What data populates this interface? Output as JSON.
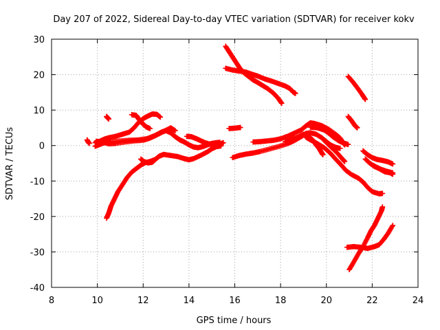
{
  "chart_data": {
    "type": "scatter",
    "title": "Day 207 of 2022, Sidereal Day-to-day VTEC variation (SDTVAR) for receiver kokv",
    "xlabel": "GPS time / hours",
    "ylabel": "SDTVAR / TECUs",
    "xlim": [
      8,
      24
    ],
    "ylim": [
      -40,
      30
    ],
    "x_ticks": [
      8,
      10,
      12,
      14,
      16,
      18,
      20,
      22,
      24
    ],
    "y_ticks": [
      -40,
      -30,
      -20,
      -10,
      0,
      10,
      20,
      30
    ],
    "grid": true,
    "marker": "plus",
    "color": "#ff0000",
    "tracks": [
      [
        [
          9.55,
          1.6
        ],
        [
          9.6,
          1.0
        ],
        [
          9.65,
          0.6
        ]
      ],
      [
        [
          9.9,
          0.8
        ],
        [
          10.1,
          1.2
        ],
        [
          10.3,
          1.8
        ],
        [
          10.5,
          2.2
        ],
        [
          10.8,
          2.6
        ],
        [
          11.1,
          3.2
        ],
        [
          11.4,
          3.8
        ],
        [
          11.6,
          5.0
        ],
        [
          11.8,
          6.5
        ],
        [
          12.0,
          7.6
        ],
        [
          12.2,
          8.3
        ],
        [
          12.4,
          8.9
        ],
        [
          12.6,
          8.8
        ],
        [
          12.75,
          8.0
        ]
      ],
      [
        [
          9.9,
          -0.2
        ],
        [
          10.1,
          0.3
        ],
        [
          10.3,
          0.8
        ],
        [
          10.6,
          1.0
        ],
        [
          11.0,
          1.3
        ],
        [
          11.4,
          1.5
        ],
        [
          11.8,
          1.6
        ],
        [
          12.2,
          2.0
        ],
        [
          12.5,
          2.8
        ],
        [
          12.8,
          3.8
        ],
        [
          13.0,
          4.2
        ],
        [
          13.2,
          3.6
        ],
        [
          13.4,
          2.5
        ],
        [
          13.6,
          1.6
        ],
        [
          13.8,
          1.0
        ],
        [
          14.0,
          0.2
        ],
        [
          14.2,
          -0.4
        ],
        [
          14.4,
          -0.6
        ],
        [
          14.6,
          -0.3
        ],
        [
          14.8,
          0.2
        ],
        [
          15.0,
          0.6
        ],
        [
          15.2,
          0.8
        ],
        [
          15.35,
          0.9
        ]
      ],
      [
        [
          9.95,
          1.2
        ],
        [
          10.2,
          1.0
        ],
        [
          10.5,
          0.5
        ],
        [
          10.8,
          0.6
        ],
        [
          11.2,
          1.0
        ],
        [
          11.6,
          1.3
        ],
        [
          12.0,
          1.5
        ],
        [
          12.3,
          2.1
        ],
        [
          12.6,
          3.0
        ],
        [
          12.9,
          4.0
        ],
        [
          13.2,
          5.0
        ],
        [
          13.4,
          4.2
        ]
      ],
      [
        [
          10.4,
          8.2
        ],
        [
          10.45,
          7.8
        ],
        [
          10.5,
          7.5
        ]
      ],
      [
        [
          11.5,
          8.7
        ],
        [
          11.7,
          8.5
        ],
        [
          11.8,
          7.5
        ],
        [
          11.9,
          6.8
        ],
        [
          12.0,
          6.0
        ],
        [
          12.15,
          5.2
        ],
        [
          12.3,
          4.8
        ]
      ],
      [
        [
          10.4,
          -20.5
        ],
        [
          10.5,
          -19.0
        ],
        [
          10.6,
          -17.0
        ],
        [
          10.75,
          -15.0
        ],
        [
          10.9,
          -13.0
        ],
        [
          11.1,
          -11.0
        ],
        [
          11.3,
          -9.0
        ],
        [
          11.5,
          -7.5
        ],
        [
          11.7,
          -6.5
        ],
        [
          11.9,
          -5.5
        ],
        [
          12.1,
          -4.8
        ],
        [
          12.3,
          -4.5
        ],
        [
          12.5,
          -4.0
        ]
      ],
      [
        [
          11.9,
          -3.8
        ],
        [
          12.0,
          -4.4
        ],
        [
          12.2,
          -4.9
        ],
        [
          12.4,
          -4.7
        ],
        [
          12.55,
          -3.8
        ],
        [
          12.7,
          -3.0
        ],
        [
          12.9,
          -2.5
        ],
        [
          13.2,
          -2.8
        ],
        [
          13.5,
          -3.1
        ],
        [
          13.8,
          -3.7
        ],
        [
          14.0,
          -4.0
        ],
        [
          14.2,
          -3.7
        ],
        [
          14.5,
          -2.8
        ],
        [
          14.8,
          -1.8
        ],
        [
          15.0,
          -0.9
        ],
        [
          15.2,
          -0.3
        ],
        [
          15.4,
          -0.1
        ]
      ],
      [
        [
          13.9,
          2.6
        ],
        [
          14.1,
          2.5
        ],
        [
          14.3,
          2.0
        ],
        [
          14.5,
          1.4
        ],
        [
          14.7,
          0.8
        ],
        [
          14.9,
          0.4
        ],
        [
          15.1,
          0.1
        ],
        [
          15.3,
          0.3
        ],
        [
          15.5,
          0.8
        ]
      ],
      [
        [
          15.6,
          28.0
        ],
        [
          15.75,
          26.5
        ],
        [
          15.9,
          25.0
        ],
        [
          16.05,
          23.5
        ],
        [
          16.2,
          22.0
        ],
        [
          16.4,
          20.5
        ],
        [
          16.6,
          19.5
        ],
        [
          16.8,
          18.5
        ],
        [
          17.0,
          17.8
        ],
        [
          17.2,
          17.0
        ],
        [
          17.45,
          16.0
        ],
        [
          17.7,
          14.7
        ],
        [
          17.9,
          13.3
        ],
        [
          18.05,
          11.9
        ]
      ],
      [
        [
          15.6,
          21.8
        ],
        [
          15.9,
          21.3
        ],
        [
          16.2,
          21.0
        ],
        [
          16.5,
          20.7
        ],
        [
          16.8,
          20.0
        ],
        [
          17.0,
          19.6
        ],
        [
          17.3,
          18.8
        ],
        [
          17.6,
          18.2
        ],
        [
          17.9,
          17.5
        ],
        [
          18.2,
          16.8
        ],
        [
          18.4,
          16.1
        ],
        [
          18.55,
          15.1
        ],
        [
          18.65,
          14.7
        ]
      ],
      [
        [
          15.75,
          4.8
        ],
        [
          16.0,
          4.9
        ],
        [
          16.25,
          5.1
        ]
      ],
      [
        [
          15.9,
          -3.4
        ],
        [
          16.2,
          -2.8
        ],
        [
          16.5,
          -2.4
        ],
        [
          16.8,
          -2.1
        ],
        [
          17.1,
          -1.7
        ],
        [
          17.5,
          -1.0
        ],
        [
          17.9,
          -0.3
        ],
        [
          18.3,
          0.5
        ],
        [
          18.6,
          1.4
        ],
        [
          18.9,
          2.5
        ],
        [
          19.1,
          3.4
        ],
        [
          19.3,
          3.6
        ],
        [
          19.55,
          3.2
        ],
        [
          19.8,
          2.2
        ],
        [
          20.0,
          1.1
        ],
        [
          20.2,
          0.1
        ],
        [
          20.4,
          -0.5
        ],
        [
          20.6,
          -0.8
        ]
      ],
      [
        [
          16.8,
          1.0
        ],
        [
          17.1,
          1.1
        ],
        [
          17.4,
          1.3
        ],
        [
          17.7,
          1.5
        ],
        [
          18.0,
          1.9
        ],
        [
          18.3,
          2.6
        ],
        [
          18.6,
          3.5
        ],
        [
          18.9,
          4.4
        ],
        [
          19.1,
          5.5
        ],
        [
          19.3,
          6.4
        ],
        [
          19.5,
          6.2
        ],
        [
          19.8,
          5.6
        ],
        [
          20.1,
          4.6
        ],
        [
          20.4,
          3.2
        ],
        [
          20.6,
          2.1
        ],
        [
          20.75,
          0.6
        ],
        [
          20.8,
          0.2
        ]
      ],
      [
        [
          18.2,
          1.1
        ],
        [
          18.5,
          1.8
        ],
        [
          18.8,
          2.5
        ],
        [
          19.0,
          3.2
        ],
        [
          19.2,
          2.7
        ],
        [
          19.4,
          1.6
        ],
        [
          19.55,
          0.2
        ],
        [
          19.7,
          -1.0
        ],
        [
          19.8,
          -2.1
        ],
        [
          19.85,
          -2.6
        ]
      ],
      [
        [
          19.3,
          5.2
        ],
        [
          19.6,
          5.0
        ],
        [
          19.9,
          4.4
        ],
        [
          20.1,
          3.5
        ],
        [
          20.3,
          2.4
        ],
        [
          20.55,
          1.3
        ],
        [
          20.8,
          0.6
        ],
        [
          20.95,
          0.3
        ]
      ],
      [
        [
          19.1,
          2.4
        ],
        [
          19.3,
          1.6
        ],
        [
          19.6,
          0.6
        ],
        [
          19.9,
          -0.6
        ],
        [
          20.15,
          -2.0
        ],
        [
          20.4,
          -3.8
        ],
        [
          20.65,
          -5.5
        ],
        [
          20.85,
          -7.0
        ],
        [
          21.1,
          -8.2
        ],
        [
          21.4,
          -9.2
        ],
        [
          21.6,
          -10.3
        ],
        [
          21.8,
          -11.8
        ],
        [
          22.0,
          -13.0
        ],
        [
          22.3,
          -13.6
        ],
        [
          22.45,
          -13.5
        ]
      ],
      [
        [
          19.9,
          1.5
        ],
        [
          20.1,
          0.2
        ],
        [
          20.3,
          -1.0
        ],
        [
          20.5,
          -2.3
        ],
        [
          20.7,
          -3.8
        ],
        [
          20.8,
          -4.5
        ]
      ],
      [
        [
          20.95,
          19.5
        ],
        [
          21.15,
          18.0
        ],
        [
          21.35,
          16.3
        ],
        [
          21.55,
          14.5
        ],
        [
          21.7,
          13.0
        ]
      ],
      [
        [
          20.95,
          8.2
        ],
        [
          21.1,
          7.0
        ],
        [
          21.25,
          5.6
        ],
        [
          21.35,
          5.0
        ]
      ],
      [
        [
          21.6,
          -1.5
        ],
        [
          21.8,
          -2.6
        ],
        [
          22.0,
          -3.4
        ],
        [
          22.2,
          -3.9
        ],
        [
          22.45,
          -4.2
        ],
        [
          22.7,
          -4.6
        ],
        [
          22.9,
          -5.2
        ]
      ],
      [
        [
          21.7,
          -3.8
        ],
        [
          21.9,
          -5.0
        ],
        [
          22.1,
          -5.9
        ],
        [
          22.35,
          -6.6
        ],
        [
          22.6,
          -7.2
        ],
        [
          22.9,
          -7.7
        ]
      ],
      [
        [
          22.05,
          -5.6
        ],
        [
          22.3,
          -6.5
        ],
        [
          22.55,
          -7.4
        ],
        [
          22.8,
          -7.7
        ],
        [
          22.9,
          -8.1
        ]
      ],
      [
        [
          21.0,
          -35.0
        ],
        [
          21.2,
          -32.8
        ],
        [
          21.4,
          -30.5
        ],
        [
          21.6,
          -28.5
        ],
        [
          21.8,
          -26.0
        ],
        [
          21.95,
          -24.0
        ],
        [
          22.1,
          -22.5
        ],
        [
          22.25,
          -20.5
        ],
        [
          22.4,
          -18.5
        ],
        [
          22.45,
          -17.3
        ]
      ],
      [
        [
          20.9,
          -28.7
        ],
        [
          21.2,
          -28.5
        ],
        [
          21.5,
          -28.7
        ],
        [
          21.8,
          -29.0
        ],
        [
          22.1,
          -28.5
        ],
        [
          22.3,
          -28.0
        ],
        [
          22.5,
          -26.5
        ],
        [
          22.7,
          -24.7
        ],
        [
          22.9,
          -22.5
        ]
      ]
    ]
  }
}
